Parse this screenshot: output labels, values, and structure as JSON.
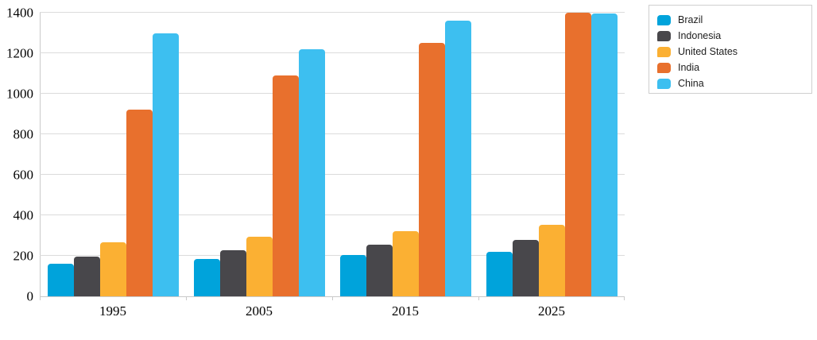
{
  "chart_data": {
    "type": "bar",
    "title": "",
    "xlabel": "",
    "ylabel": "",
    "categories": [
      "1995",
      "2005",
      "2015",
      "2025"
    ],
    "series": [
      {
        "name": "Brazil",
        "color": "#00A3DB",
        "values": [
          160,
          185,
          205,
          218
        ]
      },
      {
        "name": "Indonesia",
        "color": "#48474B",
        "values": [
          197,
          229,
          256,
          278
        ]
      },
      {
        "name": "United States",
        "color": "#FBB033",
        "values": [
          268,
          296,
          320,
          352
        ]
      },
      {
        "name": "India",
        "color": "#E8702D",
        "values": [
          920,
          1090,
          1250,
          1400
        ]
      },
      {
        "name": "China",
        "color": "#3DBFF0",
        "values": [
          1300,
          1220,
          1360,
          1395
        ]
      }
    ],
    "ylim": [
      0,
      1400
    ],
    "yticks": [
      0,
      200,
      400,
      600,
      800,
      1000,
      1200,
      1400
    ],
    "grid": true,
    "legend_position": "top-right"
  },
  "colors": {
    "background": "#FFFFFF",
    "grid": "#DBDBDB",
    "axis": "#C9C9C9",
    "legend_border": "#CFCFCF",
    "axis_text": "#000000",
    "legend_text": "#1E1E1E"
  }
}
